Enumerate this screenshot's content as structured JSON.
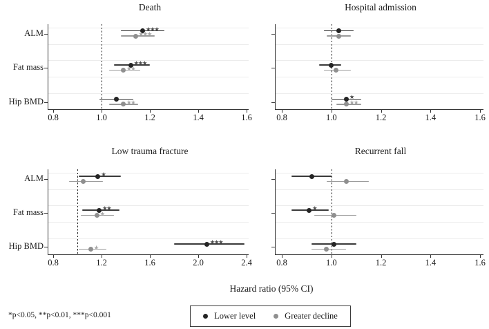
{
  "figure": {
    "xtitle": "Hazard ratio (95% CI)",
    "footnote": "*p<0.05, **p<0.01, ***p<0.001",
    "legend_items": [
      {
        "label": "Lower level",
        "marker": "dark-circle-icon"
      },
      {
        "label": "Greater decline",
        "marker": "gray-circle-icon"
      }
    ],
    "colors": {
      "lower_series": "#242424",
      "decline_series": "#8f8f8f",
      "lower_ci": "#3a3a3a",
      "decline_ci": "#9a9a9a",
      "lower_stars": "#4a4a4a",
      "decline_stars": "#a6a6a6",
      "axis": "#333333",
      "gridline": "#ececec",
      "refline": "#222222"
    }
  },
  "chart_data": [
    {
      "type": "scatter",
      "subtype": "forest-plot",
      "position": "top-left",
      "title": "Death",
      "xlim": [
        0.8,
        1.6
      ],
      "xtick_labels": [
        "0.8",
        "1.0",
        "1.2",
        "1.4",
        "1.6"
      ],
      "refline": 1.0,
      "grid": true,
      "categories": [
        "ALM",
        "Fat mass",
        "Hip BMD"
      ],
      "show_category_labels": true,
      "series": [
        {
          "name": "Lower level",
          "values": [
            {
              "hr": 1.17,
              "lo": 1.08,
              "hi": 1.26,
              "sig": "***"
            },
            {
              "hr": 1.12,
              "lo": 1.05,
              "hi": 1.2,
              "sig": "***"
            },
            {
              "hr": 1.06,
              "lo": 0.99,
              "hi": 1.13,
              "sig": ""
            }
          ]
        },
        {
          "name": "Greater decline",
          "values": [
            {
              "hr": 1.14,
              "lo": 1.08,
              "hi": 1.22,
              "sig": "***"
            },
            {
              "hr": 1.09,
              "lo": 1.03,
              "hi": 1.16,
              "sig": "**"
            },
            {
              "hr": 1.09,
              "lo": 1.03,
              "hi": 1.15,
              "sig": "**"
            }
          ]
        }
      ]
    },
    {
      "type": "scatter",
      "subtype": "forest-plot",
      "position": "top-right",
      "title": "Hospital admission",
      "xlim": [
        0.8,
        1.6
      ],
      "xtick_labels": [
        "0.8",
        "1.0",
        "1.2",
        "1.4",
        "1.6"
      ],
      "refline": 1.0,
      "grid": true,
      "categories": [
        "ALM",
        "Fat mass",
        "Hip BMD"
      ],
      "show_category_labels": false,
      "series": [
        {
          "name": "Lower level",
          "values": [
            {
              "hr": 1.03,
              "lo": 0.97,
              "hi": 1.09,
              "sig": ""
            },
            {
              "hr": 1.0,
              "lo": 0.95,
              "hi": 1.04,
              "sig": ""
            },
            {
              "hr": 1.06,
              "lo": 1.0,
              "hi": 1.12,
              "sig": "*"
            }
          ]
        },
        {
          "name": "Greater decline",
          "values": [
            {
              "hr": 1.03,
              "lo": 0.98,
              "hi": 1.08,
              "sig": ""
            },
            {
              "hr": 1.02,
              "lo": 0.97,
              "hi": 1.08,
              "sig": ""
            },
            {
              "hr": 1.06,
              "lo": 1.02,
              "hi": 1.12,
              "sig": "**"
            }
          ]
        }
      ]
    },
    {
      "type": "scatter",
      "subtype": "forest-plot",
      "position": "bottom-left",
      "title": "Low trauma fracture",
      "xlim": [
        0.8,
        2.4
      ],
      "xtick_labels": [
        "0.8",
        "1.2",
        "1.6",
        "2.0",
        "2.4"
      ],
      "refline": 1.0,
      "grid": true,
      "categories": [
        "ALM",
        "Fat mass",
        "Hip BMD"
      ],
      "show_category_labels": true,
      "series": [
        {
          "name": "Lower level",
          "values": [
            {
              "hr": 1.17,
              "lo": 1.01,
              "hi": 1.36,
              "sig": "*"
            },
            {
              "hr": 1.18,
              "lo": 1.04,
              "hi": 1.35,
              "sig": "**"
            },
            {
              "hr": 2.07,
              "lo": 1.8,
              "hi": 2.38,
              "sig": "***"
            }
          ]
        },
        {
          "name": "Greater decline",
          "values": [
            {
              "hr": 1.05,
              "lo": 0.93,
              "hi": 1.21,
              "sig": ""
            },
            {
              "hr": 1.16,
              "lo": 1.03,
              "hi": 1.3,
              "sig": "*"
            },
            {
              "hr": 1.11,
              "lo": 1.01,
              "hi": 1.24,
              "sig": "*"
            }
          ]
        }
      ]
    },
    {
      "type": "scatter",
      "subtype": "forest-plot",
      "position": "bottom-right",
      "title": "Recurrent fall",
      "xlim": [
        0.8,
        1.6
      ],
      "xtick_labels": [
        "0.8",
        "1.0",
        "1.2",
        "1.4",
        "1.6"
      ],
      "refline": 1.0,
      "grid": true,
      "categories": [
        "ALM",
        "Fat mass",
        "Hip BMD"
      ],
      "show_category_labels": false,
      "series": [
        {
          "name": "Lower level",
          "values": [
            {
              "hr": 0.92,
              "lo": 0.84,
              "hi": 1.0,
              "sig": ""
            },
            {
              "hr": 0.91,
              "lo": 0.84,
              "hi": 0.99,
              "sig": "*"
            },
            {
              "hr": 1.01,
              "lo": 0.92,
              "hi": 1.1,
              "sig": ""
            }
          ]
        },
        {
          "name": "Greater decline",
          "values": [
            {
              "hr": 1.06,
              "lo": 0.98,
              "hi": 1.15,
              "sig": ""
            },
            {
              "hr": 1.01,
              "lo": 0.93,
              "hi": 1.1,
              "sig": ""
            },
            {
              "hr": 0.98,
              "lo": 0.92,
              "hi": 1.06,
              "sig": ""
            }
          ]
        }
      ]
    }
  ]
}
